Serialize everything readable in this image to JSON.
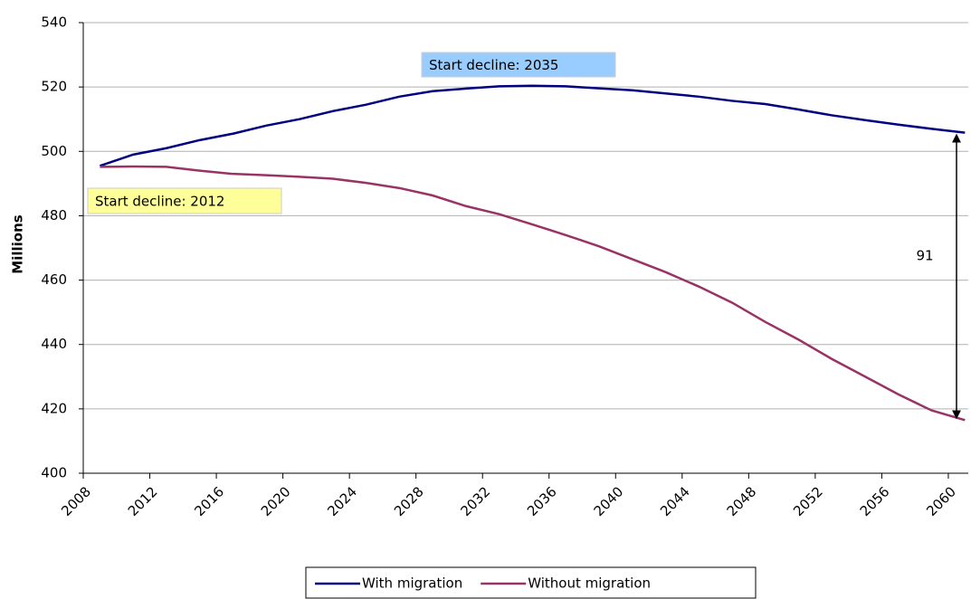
{
  "chart_data": {
    "type": "line",
    "y_label": "Millions",
    "x": [
      2009,
      2011,
      2013,
      2015,
      2017,
      2019,
      2021,
      2023,
      2025,
      2027,
      2029,
      2031,
      2033,
      2035,
      2037,
      2039,
      2041,
      2043,
      2045,
      2047,
      2049,
      2051,
      2053,
      2055,
      2057,
      2059,
      2061
    ],
    "series": [
      {
        "name": "With migration",
        "color": "#000080",
        "values": [
          495.5,
          499,
          501,
          503.5,
          505.5,
          508,
          510,
          512.5,
          514.5,
          517,
          518.7,
          519.5,
          520.2,
          520.4,
          520.2,
          519.6,
          519,
          518,
          517,
          515.7,
          514.7,
          513,
          511.2,
          509.7,
          508.3,
          507,
          505.8
        ]
      },
      {
        "name": "Without migration",
        "color": "#993366",
        "values": [
          495.2,
          495.3,
          495.2,
          494,
          493,
          492.6,
          492.1,
          491.5,
          490.2,
          488.6,
          486.3,
          483,
          480.5,
          477.3,
          474,
          470.5,
          466.5,
          462.5,
          458,
          453,
          447,
          441.5,
          435.5,
          430,
          424.5,
          419.5,
          416.5
        ]
      }
    ],
    "annotations": [
      {
        "text": "Start decline: 2035",
        "color": "#99ccff"
      },
      {
        "text": "Start decline: 2012",
        "color": "#ffff99"
      },
      {
        "text": "91"
      }
    ],
    "xlim": [
      2008,
      2061.2
    ],
    "xticks": [
      2008,
      2012,
      2016,
      2020,
      2024,
      2028,
      2032,
      2036,
      2040,
      2044,
      2048,
      2052,
      2056,
      2060
    ],
    "ylim": [
      400,
      540
    ],
    "yticks": [
      400,
      420,
      440,
      460,
      480,
      500,
      520,
      540
    ],
    "grid": true
  }
}
